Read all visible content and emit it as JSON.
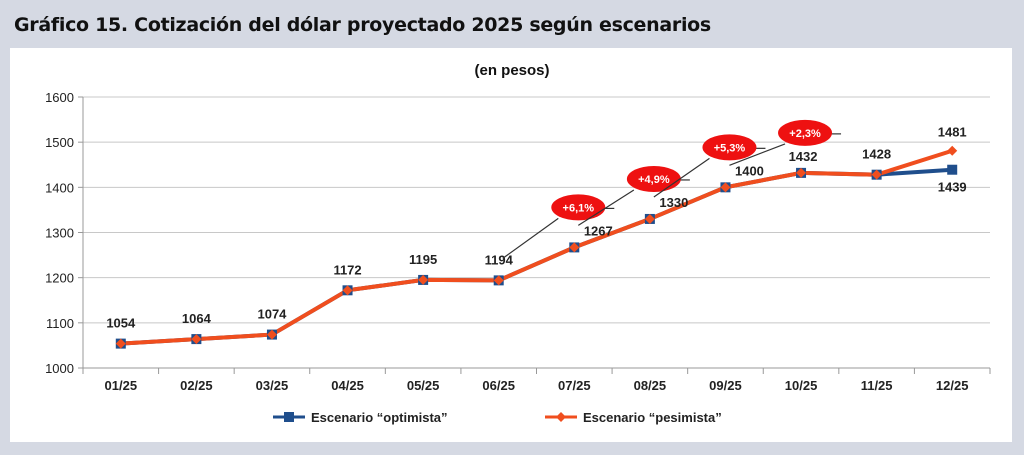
{
  "title": "Gráfico 15. Cotización del dólar proyectado 2025 según escenarios",
  "chart_data": {
    "type": "line",
    "subtitle": "(en pesos)",
    "categories": [
      "01/25",
      "02/25",
      "03/25",
      "04/25",
      "05/25",
      "06/25",
      "07/25",
      "08/25",
      "09/25",
      "10/25",
      "11/25",
      "12/25"
    ],
    "ylim": [
      1000,
      1600
    ],
    "yticks": [
      1000,
      1100,
      1200,
      1300,
      1400,
      1500,
      1600
    ],
    "grid": true,
    "legend_position": "bottom",
    "series": [
      {
        "name": "Escenario “optimista”",
        "color": "#1f4e8c",
        "marker": "square",
        "values": [
          1054,
          1064,
          1074,
          1172,
          1195,
          1194,
          1267,
          1330,
          1400,
          1432,
          1428,
          1439
        ]
      },
      {
        "name": "Escenario “pesimista”",
        "color": "#f04e1e",
        "marker": "diamond",
        "values": [
          1054,
          1064,
          1074,
          1172,
          1195,
          1194,
          1267,
          1330,
          1400,
          1432,
          1428,
          1481
        ]
      }
    ],
    "data_labels": [
      "1054",
      "1064",
      "1074",
      "1172",
      "1195",
      "1194",
      "1267",
      "1330",
      "1400",
      "1432",
      "1428",
      "1481",
      "1439"
    ],
    "annotations": [
      {
        "text": "+6,1%",
        "category": "07/25"
      },
      {
        "text": "+4,9%",
        "category": "08/25"
      },
      {
        "text": "+5,3%",
        "category": "09/25"
      },
      {
        "text": "+2,3%",
        "category": "10/25"
      }
    ],
    "annotation_color": "#ee1111"
  }
}
